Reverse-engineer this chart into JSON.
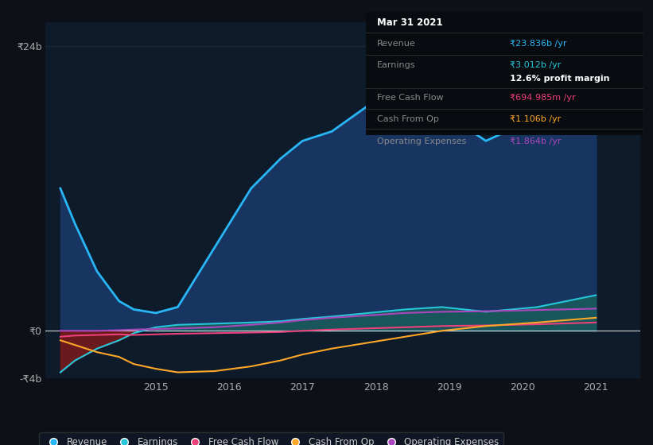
{
  "bg_color": "#0d1117",
  "plot_bg_color": "#0d1b2a",
  "ylim": [
    -4000000000,
    26000000000
  ],
  "ytick_vals": [
    -4000000000,
    0,
    24000000000
  ],
  "ytick_labels": [
    "-₹4b",
    "₹0",
    "₹24b"
  ],
  "xlim": [
    2013.5,
    2021.6
  ],
  "xticks": [
    2015,
    2016,
    2017,
    2018,
    2019,
    2020,
    2021
  ],
  "colors": {
    "revenue": "#29b6f6",
    "earnings": "#26c6da",
    "free_cash_flow": "#ec407a",
    "cash_from_op": "#ffa726",
    "operating_expenses": "#ab47bc",
    "revenue_fill": "#1a3a6b",
    "earnings_fill_pos": "#1a5c5c",
    "earnings_fill_neg": "#7b1a1a"
  },
  "tooltip": {
    "title": "Mar 31 2021",
    "revenue_label": "Revenue",
    "revenue_val": "₹23.836b /yr",
    "earnings_label": "Earnings",
    "earnings_val": "₹3.012b /yr",
    "margin_val": "12.6% profit margin",
    "fcf_label": "Free Cash Flow",
    "fcf_val": "₹694.985m /yr",
    "cop_label": "Cash From Op",
    "cop_val": "₹1.106b /yr",
    "opex_label": "Operating Expenses",
    "opex_val": "₹1.864b /yr"
  },
  "revenue": [
    12000000000,
    9000000000,
    5000000000,
    2500000000,
    1800000000,
    1500000000,
    2000000000,
    7000000000,
    12000000000,
    14500000000,
    16000000000,
    16800000000,
    19000000000,
    21000000000,
    18500000000,
    16000000000,
    18000000000,
    23800000000
  ],
  "earnings": [
    -3500000000,
    -2500000000,
    -1500000000,
    -800000000,
    -200000000,
    300000000,
    500000000,
    600000000,
    700000000,
    800000000,
    1000000000,
    1200000000,
    1500000000,
    1800000000,
    2000000000,
    1600000000,
    2000000000,
    3000000000
  ],
  "free_cash_flow": [
    -500000000,
    -400000000,
    -350000000,
    -300000000,
    -350000000,
    -300000000,
    -250000000,
    -200000000,
    -150000000,
    -100000000,
    0,
    100000000,
    200000000,
    300000000,
    400000000,
    450000000,
    550000000,
    700000000
  ],
  "cash_from_op": [
    -800000000,
    -1200000000,
    -1800000000,
    -2200000000,
    -2800000000,
    -3200000000,
    -3500000000,
    -3400000000,
    -3000000000,
    -2500000000,
    -2000000000,
    -1500000000,
    -1000000000,
    -500000000,
    0,
    400000000,
    700000000,
    1100000000
  ],
  "operating_expenses": [
    0,
    0,
    0,
    50000000,
    100000000,
    150000000,
    200000000,
    300000000,
    500000000,
    700000000,
    900000000,
    1100000000,
    1300000000,
    1500000000,
    1600000000,
    1650000000,
    1750000000,
    1864000000
  ],
  "x_years": [
    2013.7,
    2013.9,
    2014.2,
    2014.5,
    2014.7,
    2015.0,
    2015.3,
    2015.8,
    2016.3,
    2016.7,
    2017.0,
    2017.4,
    2017.9,
    2018.4,
    2018.9,
    2019.5,
    2020.2,
    2021.0
  ],
  "legend_labels": [
    "Revenue",
    "Earnings",
    "Free Cash Flow",
    "Cash From Op",
    "Operating Expenses"
  ]
}
